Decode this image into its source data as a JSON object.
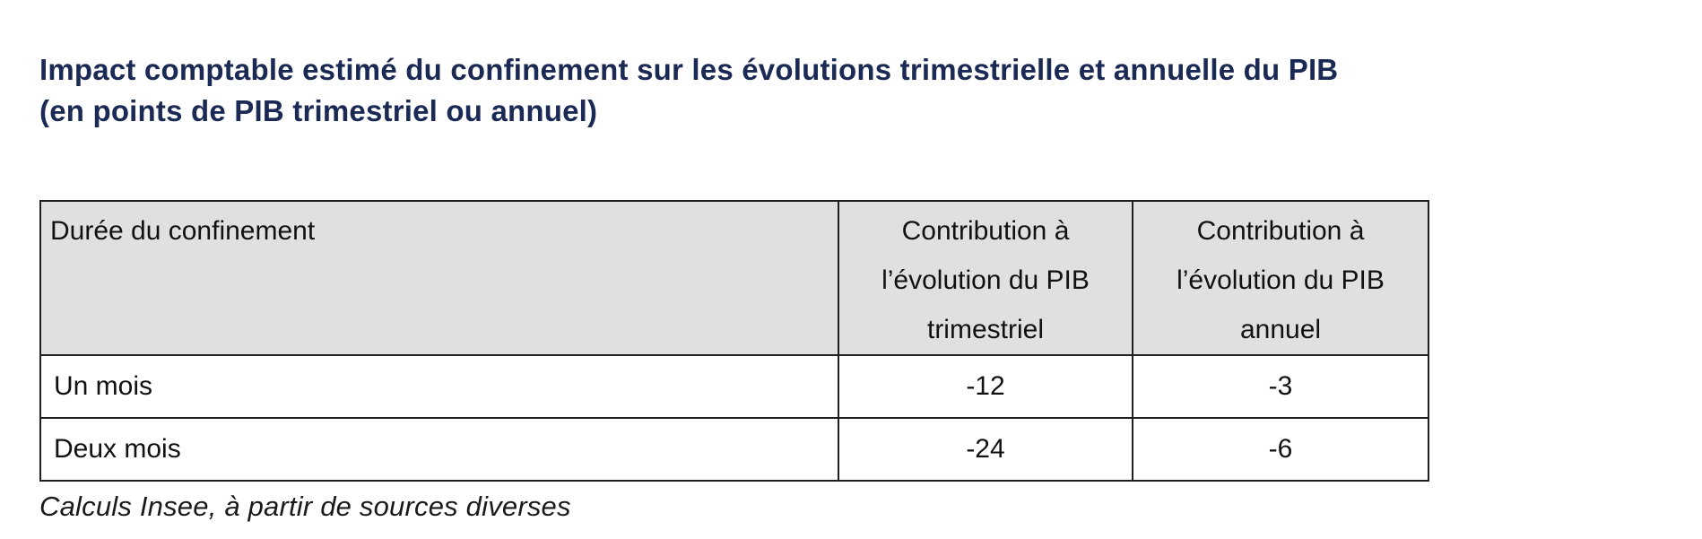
{
  "title": {
    "line1": "Impact comptable estimé du confinement sur les évolutions trimestrielle et annuelle du PIB",
    "line2": "(en points de PIB trimestriel ou annuel)"
  },
  "table": {
    "columns": [
      "Durée du confinement",
      "Contribution à l’évolution du PIB trimestriel",
      "Contribution à l’évolution du PIB annuel"
    ],
    "rows": [
      [
        "Un mois",
        "-12",
        "-3"
      ],
      [
        "Deux mois",
        "-24",
        "-6"
      ]
    ]
  },
  "footer": {
    "source": "Calculs Insee, à partir de sources diverses"
  },
  "colors": {
    "title_text": "#1b2a55",
    "header_background": "#e0e0e0",
    "table_border": "#1f1f1f",
    "body_text": "#111111",
    "page_background": "#ffffff"
  }
}
